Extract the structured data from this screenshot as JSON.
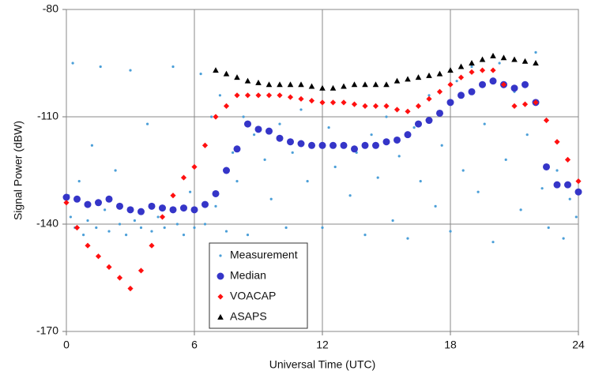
{
  "chart_data": {
    "type": "scatter",
    "xlabel": "Universal Time (UTC)",
    "ylabel": "Signal Power (dBW)",
    "xlim": [
      0,
      24
    ],
    "ylim": [
      -170,
      -80
    ],
    "xticks": [
      0,
      6,
      12,
      18,
      24
    ],
    "yticks": [
      -170,
      -140,
      -110,
      -80
    ],
    "grid": true,
    "legend": "lower center",
    "series": [
      {
        "name": "Measurement",
        "color": "#4b9fd8",
        "marker": "dot",
        "x": [
          0.1,
          0.2,
          0.3,
          0.4,
          0.6,
          0.8,
          1,
          1.2,
          1.4,
          1.6,
          1.8,
          2,
          2.3,
          2.5,
          2.8,
          3,
          3.2,
          3.5,
          3.8,
          4,
          4.3,
          4.6,
          5,
          5.2,
          5.5,
          5.8,
          6,
          6.3,
          6.5,
          6.8,
          7,
          7.2,
          7.5,
          7.8,
          8,
          8.3,
          8.5,
          8.8,
          9,
          9.3,
          9.6,
          10,
          10.3,
          10.6,
          11,
          11.3,
          11.6,
          12,
          12.3,
          12.6,
          13,
          13.3,
          13.6,
          14,
          14.3,
          14.6,
          15,
          15.3,
          15.6,
          16,
          16.3,
          16.6,
          17,
          17.3,
          17.6,
          18,
          18.3,
          18.6,
          19,
          19.3,
          19.6,
          20,
          20.3,
          20.6,
          21,
          21.3,
          21.6,
          22,
          22.3,
          22.6,
          23,
          23.3,
          23.6,
          23.9
        ],
        "values": [
          -132,
          -138,
          -95,
          -141,
          -128,
          -143,
          -139,
          -118,
          -141,
          -96,
          -136,
          -142,
          -125,
          -140,
          -143,
          -97,
          -139,
          -141,
          -112,
          -142,
          -138,
          -141,
          -96,
          -140,
          -143,
          -131,
          -141,
          -98,
          -140,
          -110,
          -135,
          -104,
          -142,
          -120,
          -128,
          -110,
          -143,
          -115,
          -104,
          -122,
          -133,
          -112,
          -141,
          -120,
          -108,
          -128,
          -118,
          -141,
          -113,
          -124,
          -106,
          -132,
          -120,
          -143,
          -115,
          -127,
          -110,
          -139,
          -121,
          -144,
          -113,
          -128,
          -104,
          -135,
          -118,
          -142,
          -100,
          -125,
          -96,
          -131,
          -112,
          -145,
          -95,
          -122,
          -103,
          -136,
          -115,
          -92,
          -130,
          -141,
          -125,
          -144,
          -133,
          -138
        ]
      },
      {
        "name": "Median",
        "color": "#3535c8",
        "marker": "circle",
        "x": [
          0,
          0.5,
          1,
          1.5,
          2,
          2.5,
          3,
          3.5,
          4,
          4.5,
          5,
          5.5,
          6,
          6.5,
          7,
          7.5,
          8,
          8.5,
          9,
          9.5,
          10,
          10.5,
          11,
          11.5,
          12,
          12.5,
          13,
          13.5,
          14,
          14.5,
          15,
          15.5,
          16,
          16.5,
          17,
          17.5,
          18,
          18.5,
          19,
          19.5,
          20,
          20.5,
          21,
          21.5,
          22,
          22.5,
          23,
          23.5,
          24
        ],
        "values": [
          -132.5,
          -133,
          -134.5,
          -134,
          -133,
          -135,
          -136,
          -136.5,
          -135,
          -135.5,
          -136,
          -135.5,
          -136,
          -134.5,
          -131.5,
          -125,
          -119,
          -112,
          -113.5,
          -114,
          -116,
          -117,
          -117.5,
          -118,
          -118,
          -118,
          -118,
          -119,
          -118,
          -118,
          -117,
          -116.5,
          -115,
          -112,
          -111,
          -109,
          -106,
          -104,
          -103,
          -101,
          -100,
          -101,
          -102,
          -101,
          -106,
          -124,
          -129,
          -129,
          -131
        ]
      },
      {
        "name": "VOACAP",
        "color": "#ff1010",
        "marker": "diamond",
        "x": [
          0,
          0.5,
          1,
          1.5,
          2,
          2.5,
          3,
          3.5,
          4,
          4.5,
          5,
          5.5,
          6,
          6.5,
          7,
          7.5,
          8,
          8.5,
          9,
          9.5,
          10,
          10.5,
          11,
          11.5,
          12,
          12.5,
          13,
          13.5,
          14,
          14.5,
          15,
          15.5,
          16,
          16.5,
          17,
          17.5,
          18,
          18.5,
          19,
          19.5,
          20,
          20.5,
          21,
          21.5,
          22,
          22.5,
          23,
          23.5,
          24
        ],
        "values": [
          -134,
          -141,
          -146,
          -149,
          -152,
          -155,
          -158,
          -153,
          -146,
          -138,
          -132,
          -127,
          -124,
          -118,
          -110,
          -107,
          -104,
          -104,
          -104,
          -104,
          -104,
          -104.5,
          -105,
          -105.5,
          -106,
          -106,
          -106,
          -106.5,
          -107,
          -107,
          -107,
          -108,
          -108.5,
          -107,
          -105,
          -103,
          -101,
          -99,
          -97.5,
          -97,
          -97,
          -101,
          -107,
          -106.5,
          -106,
          -111,
          -117,
          -122,
          -128
        ]
      },
      {
        "name": "ASAPS",
        "color": "#000000",
        "marker": "triangle",
        "x": [
          7,
          7.5,
          8,
          8.5,
          9,
          9.5,
          10,
          10.5,
          11,
          11.5,
          12,
          12.5,
          13,
          13.5,
          14,
          14.5,
          15,
          15.5,
          16,
          16.5,
          17,
          17.5,
          18,
          18.5,
          19,
          19.5,
          20,
          20.5,
          21,
          21.5,
          22
        ],
        "values": [
          -97,
          -98,
          -99,
          -100,
          -100.5,
          -101,
          -101,
          -101,
          -101,
          -101.5,
          -102,
          -102,
          -101.5,
          -101,
          -101,
          -101,
          -101,
          -100,
          -99.5,
          -99,
          -98.5,
          -98,
          -97,
          -96,
          -95,
          -94,
          -93,
          -93.5,
          -94,
          -94.5,
          -95
        ]
      }
    ]
  }
}
